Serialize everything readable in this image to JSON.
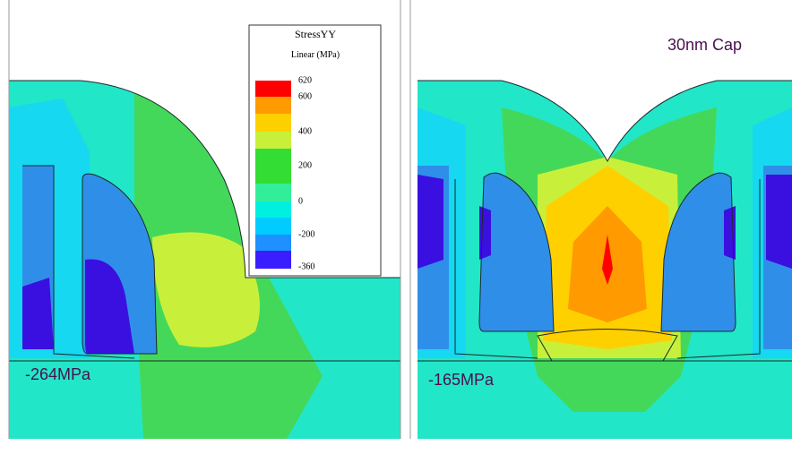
{
  "legend": {
    "title": "StressYY",
    "subtitle": "Linear (MPa)",
    "labels": [
      "620",
      "600",
      "400",
      "200",
      "0",
      "-200",
      "-360"
    ]
  },
  "panels": [
    {
      "label": "-264MPa"
    },
    {
      "label": "-165MPa",
      "caption": "30nm Cap"
    }
  ]
}
